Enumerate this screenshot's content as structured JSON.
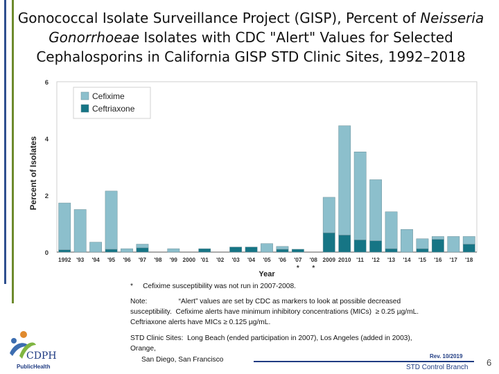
{
  "title": {
    "pre": "Gonococcal Isolate Surveillance Project (GISP), Percent of ",
    "italic": "Neisseria Gonorrhoeae",
    "post": " Isolates with CDC \"Alert\" Values for Selected Cephalosporins in California GISP STD Clinic Sites, 1992–2018"
  },
  "colors": {
    "cefixime": "#8cbfcc",
    "ceftriaxone": "#167585",
    "accent_bar_olive": "#6d8a2c",
    "accent_bar_blue": "#2f4f8f"
  },
  "chart_data": {
    "type": "bar",
    "stacked": true,
    "xlabel": "Year",
    "ylabel": "Percent of Isolates",
    "ylim": [
      0,
      6
    ],
    "yticks": [
      "0",
      "2",
      "4",
      "6"
    ],
    "grid": false,
    "legend_position": "top-left",
    "categories": [
      "1992",
      "'93",
      "'94",
      "'95",
      "'96",
      "'97",
      "'98",
      "'99",
      "2000",
      "'01",
      "'02",
      "'03",
      "'04",
      "'05",
      "'06",
      "'07",
      "'08",
      "2009",
      "2010",
      "'11",
      "'12",
      "'13",
      "'14",
      "'15",
      "'16",
      "'17",
      "'18"
    ],
    "series": [
      {
        "name": "Cefixime",
        "values": [
          1.65,
          1.5,
          0.35,
          2.05,
          0.12,
          0.13,
          0.0,
          0.12,
          0.0,
          0.0,
          0.0,
          0.0,
          0.0,
          0.3,
          0.1,
          0.0,
          0.0,
          1.25,
          3.85,
          3.1,
          2.15,
          1.3,
          0.8,
          0.35,
          0.1,
          0.55,
          0.27
        ]
      },
      {
        "name": "Ceftriaxone",
        "values": [
          0.08,
          0.0,
          0.0,
          0.1,
          0.0,
          0.15,
          0.0,
          0.0,
          0.0,
          0.12,
          0.0,
          0.18,
          0.18,
          0.0,
          0.1,
          0.1,
          0.0,
          0.68,
          0.6,
          0.43,
          0.4,
          0.12,
          0.0,
          0.12,
          0.45,
          0.0,
          0.28
        ]
      }
    ],
    "annotations": [
      {
        "category": "'07",
        "text": "*"
      },
      {
        "category": "'08",
        "text": "*"
      }
    ]
  },
  "notes": {
    "footnote": "*     Cefixime susceptibility was not run in 2007-2008.",
    "note_line1": "Note:                “Alert” values are set by CDC as markers to look at possible decreased",
    "note_line2": "susceptibility.  Cefixime alerts have minimum inhibitory concentrations (MICs)  ≥ 0.25 µg/mL.",
    "note_line3": "Ceftriaxone alerts have MICs ≥ 0.125 µg/mL.",
    "sites_line1": "STD Clinic Sites:  Long Beach (ended participation in 2007), Los Angeles (added in 2003),",
    "sites_line2": "Orange,",
    "sites_line3": "San Diego, San Francisco"
  },
  "footer": {
    "rev": "Rev. 10/2019",
    "branch": "STD Control Branch",
    "page": "6"
  },
  "logo": {
    "name": "CDPH",
    "tagline": "PublicHealth"
  }
}
